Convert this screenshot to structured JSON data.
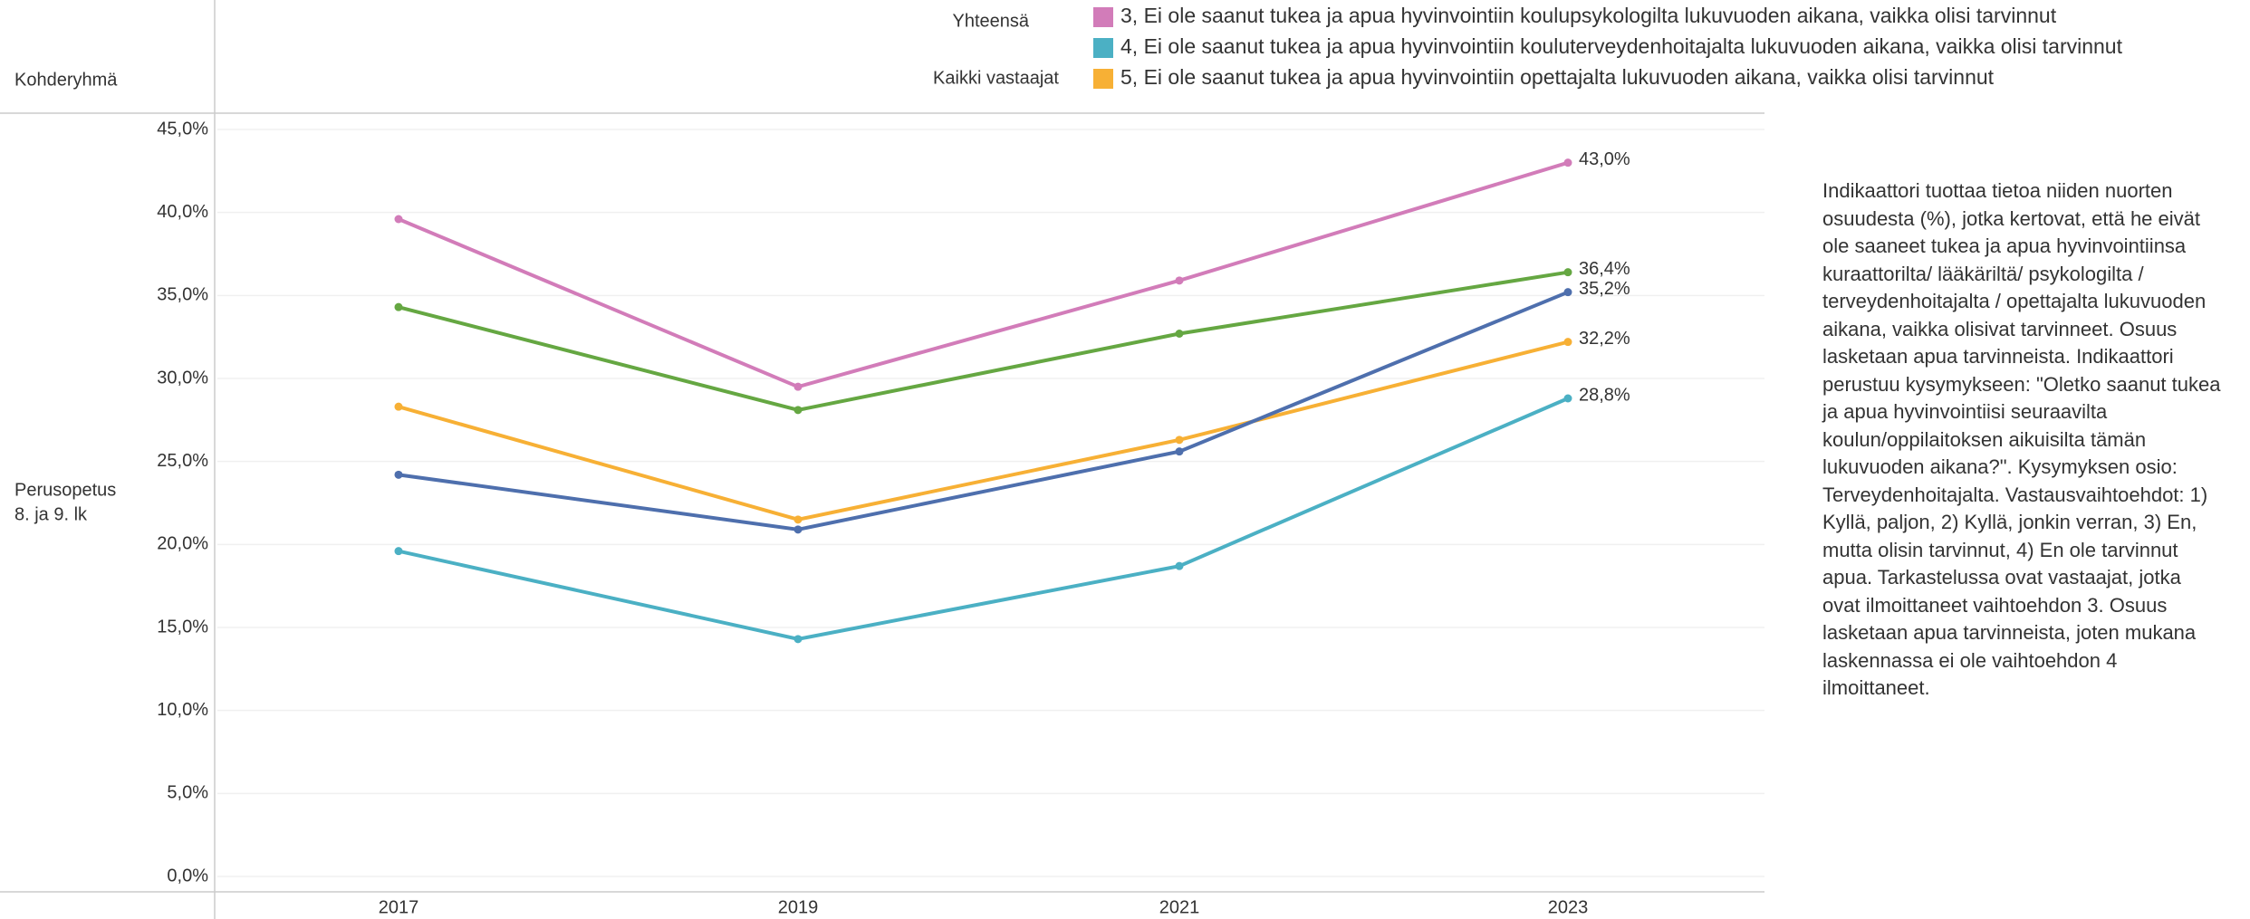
{
  "chart_data": {
    "type": "line",
    "row_header": "Kohderyhmä",
    "row_label": [
      "Perusopetus",
      "8. ja 9. lk"
    ],
    "legend_labels": [
      "Yhteensä",
      "Kaikki vastaajat"
    ],
    "description": "Indikaattori tuottaa tietoa niiden nuorten osuudesta (%), jotka kertovat, että he eivät ole saaneet tukea ja apua hyvinvointiinsa kuraattorilta/ lääkäriltä/ psykologilta / terveydenhoitajalta / opettajalta lukuvuoden aikana, vaikka olisivat tarvinneet. Osuus lasketaan apua tarvinneista. Indikaattori perustuu kysymykseen: \"Oletko saanut tukea ja apua hyvinvointiisi seuraavilta koulun/oppilaitoksen aikuisilta tämän lukuvuoden aikana?\". Kysymyksen osio: Terveydenhoitajalta. Vastausvaihtoehdot: 1) Kyllä, paljon, 2) Kyllä, jonkin verran, 3) En, mutta olisin tarvinnut, 4) En ole tarvinnut apua. Tarkastelussa ovat vastaajat, jotka ovat ilmoittaneet vaihtoehdon 3. Osuus lasketaan apua tarvinneista, joten mukana laskennassa ei ole vaihtoehdon 4 ilmoittaneet.",
    "categories": [
      "2017",
      "2019",
      "2021",
      "2023"
    ],
    "series": [
      {
        "name": "3, Ei ole saanut tukea ja apua hyvinvointiin koulupsykologilta lukuvuoden aikana, vaikka olisi tarvinnut",
        "color": "#d27cb9",
        "values": [
          39.6,
          29.5,
          35.9,
          43.0
        ],
        "value_labels": [
          null,
          null,
          null,
          "43,0%"
        ]
      },
      {
        "name": "4, Ei ole saanut tukea ja apua hyvinvointiin kouluterveydenhoitajalta lukuvuoden aikana, vaikka olisi tarvinnut",
        "color": "#4bb0c4",
        "values": [
          19.6,
          14.3,
          18.7,
          28.8
        ],
        "value_labels": [
          null,
          null,
          null,
          "28,8%"
        ]
      },
      {
        "name": "5, Ei ole saanut tukea ja apua hyvinvointiin opettajalta lukuvuoden aikana, vaikka olisi tarvinnut",
        "color": "#f7b035",
        "values": [
          28.3,
          21.5,
          26.3,
          32.2
        ],
        "value_labels": [
          null,
          null,
          null,
          "32,2%"
        ]
      },
      {
        "color": "#65a742",
        "values": [
          34.3,
          28.1,
          32.7,
          36.4
        ],
        "value_labels": [
          null,
          null,
          null,
          "36,4%"
        ]
      },
      {
        "color": "#4e6fad",
        "values": [
          24.2,
          20.9,
          25.6,
          35.2
        ],
        "value_labels": [
          null,
          null,
          null,
          "35,2%"
        ]
      }
    ],
    "ylim": [
      0,
      45
    ],
    "yticks": [
      {
        "value": 0,
        "label": "0,0%"
      },
      {
        "value": 5,
        "label": "5,0%"
      },
      {
        "value": 10,
        "label": "10,0%"
      },
      {
        "value": 15,
        "label": "15,0%"
      },
      {
        "value": 20,
        "label": "20,0%"
      },
      {
        "value": 25,
        "label": "25,0%"
      },
      {
        "value": 30,
        "label": "30,0%"
      },
      {
        "value": 35,
        "label": "35,0%"
      },
      {
        "value": 40,
        "label": "40,0%"
      },
      {
        "value": 45,
        "label": "45,0%"
      }
    ],
    "grid": true
  }
}
